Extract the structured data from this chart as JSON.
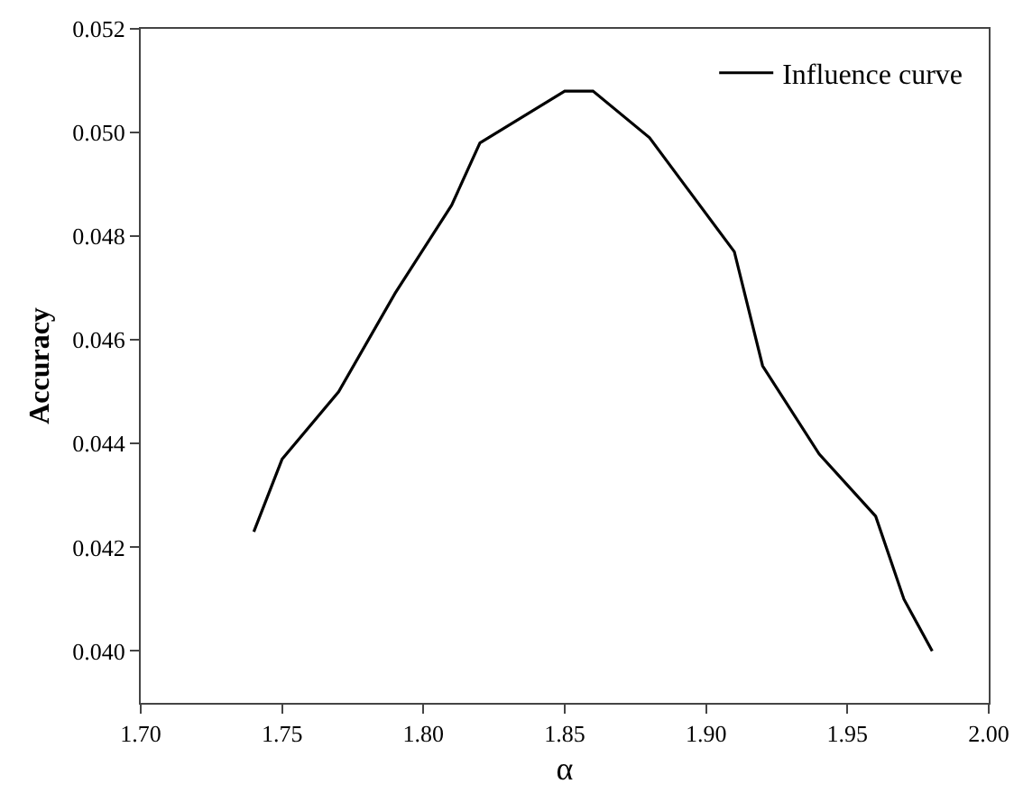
{
  "chart_data": {
    "type": "line",
    "xlabel": "α",
    "ylabel": "Accuracy",
    "x": [
      1.74,
      1.75,
      1.77,
      1.79,
      1.81,
      1.82,
      1.85,
      1.86,
      1.88,
      1.91,
      1.92,
      1.94,
      1.96,
      1.97,
      1.98
    ],
    "series": [
      {
        "name": "Influence curve",
        "color": "#000000",
        "values": [
          0.0423,
          0.0437,
          0.045,
          0.0469,
          0.0486,
          0.0498,
          0.0508,
          0.0508,
          0.0499,
          0.0477,
          0.0455,
          0.0438,
          0.0426,
          0.041,
          0.04
        ]
      }
    ],
    "xlim": [
      1.7,
      2.0
    ],
    "xticks": [
      {
        "value": 1.7,
        "label": "1.70"
      },
      1.75,
      {
        "value": 1.8,
        "label": "1.80"
      },
      1.85,
      {
        "value": 1.9,
        "label": "1.90"
      },
      1.95,
      {
        "value": 2.0,
        "label": "2.00"
      }
    ],
    "ylim": [
      0.039,
      0.052
    ],
    "yticks": [
      {
        "value": 0.04,
        "label": "0.040"
      },
      0.042,
      0.044,
      0.046,
      0.048,
      {
        "value": 0.05,
        "label": "0.050"
      },
      0.052
    ],
    "grid": false,
    "legend": "top right",
    "marker": "none",
    "line_style": "solid"
  }
}
